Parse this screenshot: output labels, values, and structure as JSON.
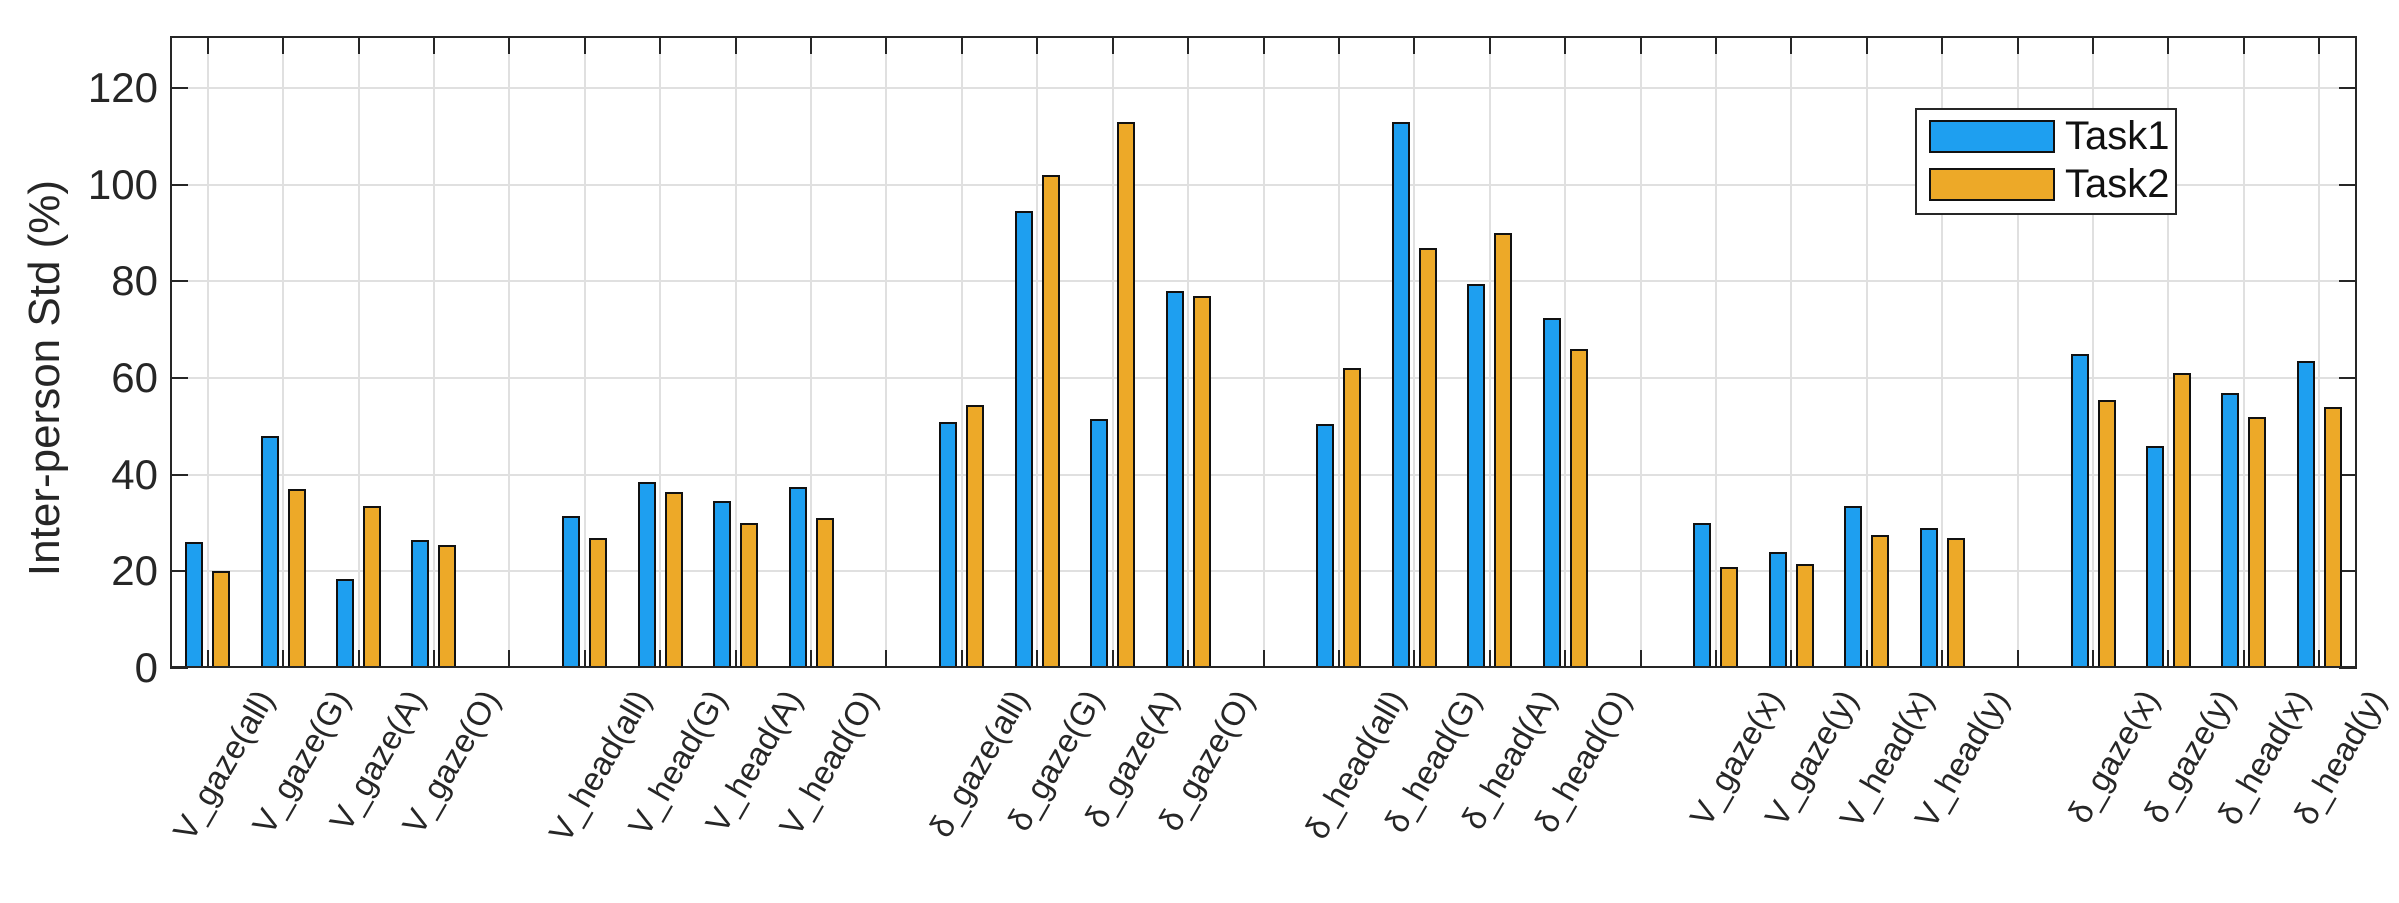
{
  "chart_data": {
    "type": "bar",
    "title": "",
    "ylabel": "Inter-person Std (%)",
    "xlabel": "",
    "ylim": [
      0,
      130
    ],
    "yticks": [
      0,
      20,
      40,
      60,
      80,
      100,
      120
    ],
    "grid": true,
    "legend_position": "top-right",
    "group_size": 4,
    "categories": [
      "V_gaze(all)",
      "V_gaze(G)",
      "V_gaze(A)",
      "V_gaze(O)",
      "V_head(all)",
      "V_head(G)",
      "V_head(A)",
      "V_head(O)",
      "δ_gaze(all)",
      "δ_gaze(G)",
      "δ_gaze(A)",
      "δ_gaze(O)",
      "δ_head(all)",
      "δ_head(G)",
      "δ_head(A)",
      "δ_head(O)",
      "V_gaze(x)",
      "V_gaze(y)",
      "V_head(x)",
      "V_head(y)",
      "δ_gaze(x)",
      "δ_gaze(y)",
      "δ_head(x)",
      "δ_head(y)"
    ],
    "series": [
      {
        "name": "Task1",
        "color": "#1E9FF0",
        "values": [
          26,
          48,
          18.5,
          26.5,
          31.5,
          38.5,
          34.5,
          37.5,
          51,
          94.5,
          51.5,
          78,
          50.5,
          113,
          79.5,
          72.5,
          30,
          24,
          33.5,
          29,
          65,
          46,
          57,
          63.5
        ]
      },
      {
        "name": "Task2",
        "color": "#EDA928",
        "values": [
          20,
          37,
          33.5,
          25.5,
          27,
          36.5,
          30,
          31,
          54.5,
          102,
          113,
          77,
          62,
          87,
          90,
          66,
          21,
          21.5,
          27.5,
          27,
          55.5,
          61,
          52,
          54
        ]
      }
    ],
    "bar_edge_color": "#111111",
    "axis_color": "#262626",
    "grid_color": "#E0E0E0",
    "background_color": "#FFFFFF"
  }
}
